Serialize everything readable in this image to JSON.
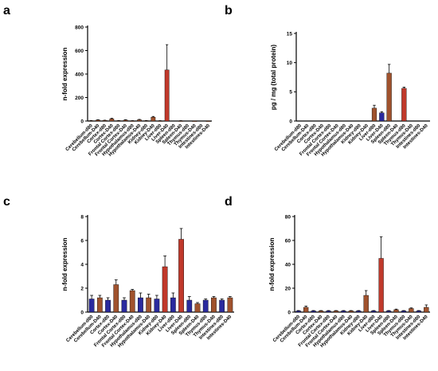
{
  "figure": {
    "panel_letters": [
      "a",
      "b",
      "c",
      "d"
    ]
  },
  "colors": {
    "day0": "#a0522d",
    "day40": "#2a2a9e",
    "highlight": "#c0392b",
    "axis": "#000000"
  },
  "chart_data": [
    {
      "type": "bar",
      "panel": "a",
      "ylabel": "n-fold expression",
      "ylim": [
        0,
        800
      ],
      "yticks": [
        0,
        200,
        400,
        600,
        800
      ],
      "categories": [
        "Cerebellum-d80",
        "Cerebellum-D40",
        "Cortex-d80",
        "Cortex-D40",
        "Frontal Cortex-d80",
        "Frontal Cortex-D40",
        "Hypothalamus-d80",
        "Hypothalamus-D40",
        "Kidney-d80",
        "Kidney-D40",
        "Liver-d80",
        "Liver-D40",
        "Spleen-d80",
        "Spleen-D40",
        "Thymus-d80",
        "Thymus-D40",
        "Intestines-d80",
        "Intestines-D40"
      ],
      "values": [
        3,
        8,
        5,
        18,
        3,
        8,
        2,
        10,
        3,
        33,
        2,
        435,
        0,
        2,
        0,
        1,
        0,
        1
      ],
      "errors": [
        1,
        3,
        2,
        5,
        1,
        3,
        1,
        4,
        1,
        6,
        1,
        215,
        0,
        1,
        0,
        0,
        0,
        0
      ],
      "bar_colors": [
        "#a0522d",
        "#a0522d",
        "#a0522d",
        "#a0522d",
        "#a0522d",
        "#a0522d",
        "#a0522d",
        "#a0522d",
        "#a0522d",
        "#a0522d",
        "#a0522d",
        "#c0392b",
        "#a0522d",
        "#a0522d",
        "#a0522d",
        "#a0522d",
        "#a0522d",
        "#a0522d"
      ]
    },
    {
      "type": "bar",
      "panel": "b",
      "ylabel": "pg / mg (total protein)",
      "ylim": [
        0,
        15
      ],
      "yticks": [
        0,
        5,
        10,
        15
      ],
      "categories": [
        "Cerebellum-d80",
        "Cerebellum-D40",
        "Cortex-d80",
        "Cortex-D40",
        "Frontal Cortex-d80",
        "Frontal Cortex-D40",
        "Hypothalamus-d80",
        "Hypothalamus-D40",
        "Kidney-d80",
        "Kidney-D40",
        "Liver-d80",
        "Liver-D40",
        "Spleen-d80",
        "Spleen-D40",
        "Thymus-d80",
        "Thymus-D40",
        "Intestines-d80",
        "Intestines-D40"
      ],
      "values": [
        0,
        0,
        0,
        0,
        0,
        0,
        0,
        0,
        0,
        0,
        2.2,
        1.4,
        8.2,
        0,
        5.6,
        0,
        0,
        0
      ],
      "errors": [
        0,
        0,
        0,
        0,
        0,
        0,
        0,
        0,
        0,
        0,
        0.5,
        0.2,
        1.5,
        0,
        0.2,
        0,
        0,
        0
      ],
      "bar_colors": [
        "#a0522d",
        "#a0522d",
        "#a0522d",
        "#a0522d",
        "#a0522d",
        "#a0522d",
        "#a0522d",
        "#a0522d",
        "#a0522d",
        "#a0522d",
        "#a0522d",
        "#2a2a9e",
        "#a0522d",
        "#a0522d",
        "#c0392b",
        "#a0522d",
        "#a0522d",
        "#a0522d"
      ]
    },
    {
      "type": "bar",
      "panel": "c",
      "ylabel": "n-fold expression",
      "ylim": [
        0,
        8
      ],
      "yticks": [
        0,
        2,
        4,
        6,
        8
      ],
      "categories": [
        "Cerebellum-d80",
        "Cerebellum-D40",
        "Cortex-d80",
        "Cortex-D40",
        "Frontal Cortex-d80",
        "Frontal Cortex-D40",
        "Hypothalamus-d80",
        "Hypothalamus-D40",
        "Kidney-d80",
        "Kidney-D40",
        "Liver-d80",
        "Liver-D40",
        "Spleen-d80",
        "Spleen-D40",
        "Thymus-d80",
        "Thymus-D40",
        "Intestines-d80",
        "Intestines-D40"
      ],
      "values": [
        1.1,
        1.2,
        1.0,
        2.3,
        1.0,
        1.8,
        1.2,
        1.2,
        1.1,
        3.8,
        1.2,
        6.1,
        1.0,
        0.7,
        1.0,
        1.2,
        1.0,
        1.2
      ],
      "errors": [
        0.3,
        0.2,
        0.2,
        0.4,
        0.2,
        0.1,
        0.4,
        0.3,
        0.3,
        0.9,
        0.4,
        0.9,
        0.3,
        0.1,
        0.1,
        0.1,
        0.1,
        0.1
      ],
      "bar_colors": [
        "#2a2a9e",
        "#a0522d",
        "#2a2a9e",
        "#a0522d",
        "#2a2a9e",
        "#a0522d",
        "#2a2a9e",
        "#a0522d",
        "#2a2a9e",
        "#c0392b",
        "#2a2a9e",
        "#c0392b",
        "#2a2a9e",
        "#a0522d",
        "#2a2a9e",
        "#a0522d",
        "#2a2a9e",
        "#a0522d"
      ]
    },
    {
      "type": "bar",
      "panel": "d",
      "ylabel": "n-fold expression",
      "ylim": [
        0,
        80
      ],
      "yticks": [
        0,
        20,
        40,
        60,
        80
      ],
      "categories": [
        "Cerebellum-d80",
        "Cerebellum-D40",
        "Cortex-d80",
        "Cortex-D40",
        "Frontal Cortex-d80",
        "Frontal Cortex-D40",
        "Hypothalamus-d80",
        "Hypothalamus-D40",
        "Kidney-d80",
        "Kidney-D40",
        "Liver-d80",
        "Liver-D40",
        "Spleen-d80",
        "Spleen-D40",
        "Thymus-d80",
        "Thymus-D40",
        "Intestines-d80",
        "Intestines-D40"
      ],
      "values": [
        1,
        4,
        1,
        1,
        1,
        1,
        1,
        1,
        1,
        14,
        1,
        45,
        1,
        2,
        1,
        3,
        1,
        4
      ],
      "errors": [
        0.3,
        1,
        0.3,
        0.3,
        0.3,
        0.3,
        0.3,
        0.3,
        0.3,
        4,
        0.3,
        18,
        0.3,
        0.5,
        0.3,
        0.5,
        0.3,
        2
      ],
      "bar_colors": [
        "#2a2a9e",
        "#a0522d",
        "#2a2a9e",
        "#a0522d",
        "#2a2a9e",
        "#a0522d",
        "#2a2a9e",
        "#a0522d",
        "#2a2a9e",
        "#a0522d",
        "#2a2a9e",
        "#c0392b",
        "#2a2a9e",
        "#a0522d",
        "#2a2a9e",
        "#a0522d",
        "#2a2a9e",
        "#a0522d"
      ]
    }
  ]
}
